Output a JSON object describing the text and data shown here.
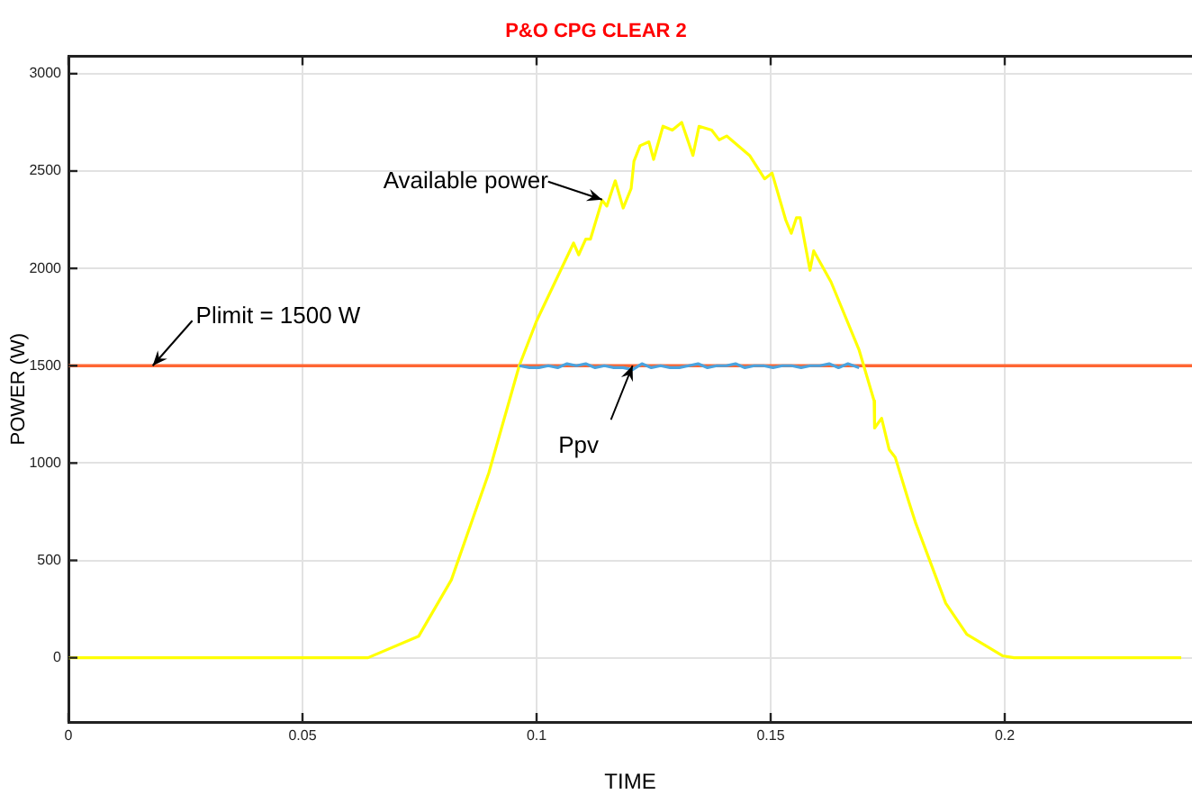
{
  "chart_data": {
    "type": "line",
    "title": "P&O CPG CLEAR 2",
    "xlabel": "TIME",
    "ylabel": "POWER (W)",
    "xlim": [
      0,
      0.24
    ],
    "ylim": [
      -330,
      3090
    ],
    "xticks": [
      0,
      0.05,
      0.1,
      0.15,
      0.2
    ],
    "yticks": [
      0,
      500,
      1000,
      1500,
      2000,
      2500,
      3000
    ],
    "grid": true,
    "legend": false,
    "marker": "none",
    "line_style": "solid",
    "series": [
      {
        "color": "#4aa3df",
        "x": [
          0.0963,
          0.0985,
          0.1005,
          0.1025,
          0.1045,
          0.1065,
          0.1085,
          0.1105,
          0.1125,
          0.1145,
          0.1165,
          0.1185,
          0.1205,
          0.1225,
          0.1245,
          0.1265,
          0.1285,
          0.1305,
          0.1325,
          0.1345,
          0.1365,
          0.1385,
          0.1405,
          0.1425,
          0.1445,
          0.1465,
          0.1485,
          0.1505,
          0.1525,
          0.1545,
          0.1565,
          0.1585,
          0.1605,
          0.1625,
          0.1645,
          0.1665,
          0.1689
        ],
        "values": [
          1500,
          1490,
          1490,
          1500,
          1490,
          1510,
          1500,
          1510,
          1490,
          1500,
          1490,
          1490,
          1480,
          1510,
          1490,
          1500,
          1490,
          1490,
          1500,
          1510,
          1490,
          1500,
          1500,
          1510,
          1490,
          1500,
          1500,
          1490,
          1500,
          1500,
          1490,
          1500,
          1500,
          1510,
          1490,
          1510,
          1490
        ]
      },
      {
        "color": "#ffff00",
        "x": [
          0,
          0.064,
          0.0748,
          0.0818,
          0.0898,
          0.0963,
          0.1,
          0.1079,
          0.109,
          0.1105,
          0.1115,
          0.114,
          0.115,
          0.1168,
          0.1185,
          0.1202,
          0.1208,
          0.1221,
          0.124,
          0.125,
          0.127,
          0.129,
          0.131,
          0.1334,
          0.1347,
          0.1374,
          0.139,
          0.1406,
          0.1455,
          0.1487,
          0.1503,
          0.1532,
          0.1544,
          0.1555,
          0.1563,
          0.1584,
          0.1592,
          0.1629,
          0.1689,
          0.1721,
          0.1722,
          0.1737,
          0.1753,
          0.1766,
          0.1794,
          0.181,
          0.1874,
          0.1919,
          0.1995,
          0.202,
          0.2377
        ],
        "values": [
          0,
          0,
          110,
          400,
          950,
          1500,
          1730,
          2130,
          2070,
          2150,
          2150,
          2350,
          2320,
          2450,
          2310,
          2410,
          2550,
          2630,
          2650,
          2560,
          2730,
          2710,
          2750,
          2580,
          2730,
          2710,
          2660,
          2680,
          2580,
          2460,
          2490,
          2250,
          2180,
          2260,
          2260,
          1990,
          2090,
          1930,
          1580,
          1320,
          1180,
          1230,
          1070,
          1030,
          810,
          690,
          280,
          120,
          10,
          0,
          0
        ]
      }
    ],
    "ref_lines": [
      {
        "axis": "y",
        "value": 1500,
        "label": "Plimit = 1500 W",
        "color": "#ff6633"
      }
    ],
    "annotations": [
      {
        "text": "Available power",
        "x": 0.114,
        "y": 2353
      },
      {
        "text": "Ppv",
        "x": 0.1205,
        "y": 1500
      }
    ]
  }
}
